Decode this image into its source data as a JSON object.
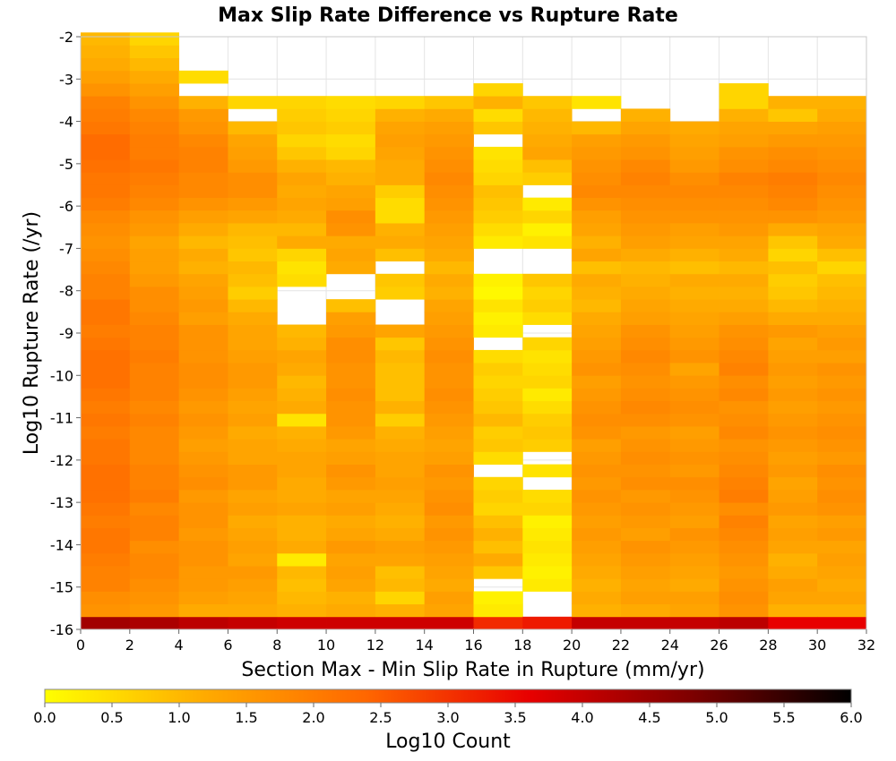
{
  "chart_data": {
    "type": "heatmap",
    "title": "Max Slip Rate Difference vs Rupture Rate",
    "xlabel": "Section Max - Min Slip Rate in Rupture (mm/yr)",
    "ylabel": "Log10 Rupture Rate (/yr)",
    "xlim": [
      0,
      32
    ],
    "ylim": [
      -16,
      -2
    ],
    "x_ticks": [
      0,
      2,
      4,
      6,
      8,
      10,
      12,
      14,
      16,
      18,
      20,
      22,
      24,
      26,
      28,
      30,
      32
    ],
    "y_ticks": [
      -2,
      -3,
      -4,
      -5,
      -6,
      -7,
      -8,
      -9,
      -10,
      -11,
      -12,
      -13,
      -14,
      -15,
      -16
    ],
    "x_bin_width": 2,
    "y_bin_start": -16,
    "y_bin_height": 0.3,
    "grid": true,
    "colorbar": {
      "label": "Log10 Count",
      "min": 0.0,
      "max": 6.0,
      "ticks": [
        "0.0",
        "0.5",
        "1.0",
        "1.5",
        "2.0",
        "2.5",
        "3.0",
        "3.5",
        "4.0",
        "4.5",
        "5.0",
        "5.5",
        "6.0"
      ],
      "colors": [
        "#ffff00",
        "#ffaa00",
        "#ff6600",
        "#e80000",
        "#7f0000",
        "#000000"
      ]
    },
    "columns": [
      {
        "x_range": [
          0,
          2
        ],
        "values": [
          4.4,
          1.6,
          1.7,
          1.9,
          1.9,
          2.0,
          2.1,
          2.1,
          2.0,
          2.1,
          2.2,
          2.2,
          2.2,
          2.1,
          2.1,
          2.0,
          2.1,
          2.0,
          2.1,
          2.2,
          2.2,
          2.2,
          2.1,
          2.0,
          2.1,
          2.1,
          1.9,
          1.9,
          1.8,
          1.7,
          1.6,
          1.7,
          1.8,
          2.0,
          2.1,
          2.1,
          2.2,
          2.3,
          2.3,
          2.1,
          2.0,
          1.9,
          1.6,
          1.4,
          1.2,
          1.1,
          1.0
        ]
      },
      {
        "x_range": [
          2,
          4
        ],
        "values": [
          4.3,
          1.5,
          1.6,
          1.7,
          1.8,
          1.8,
          1.7,
          1.9,
          1.9,
          1.8,
          2.0,
          1.9,
          1.9,
          1.8,
          1.8,
          1.8,
          1.9,
          1.8,
          1.9,
          1.9,
          1.9,
          2.0,
          1.9,
          1.9,
          1.8,
          1.7,
          1.7,
          1.5,
          1.4,
          1.4,
          1.3,
          1.5,
          1.6,
          1.8,
          1.9,
          2.0,
          2.1,
          2.0,
          2.0,
          1.9,
          1.8,
          1.6,
          1.4,
          1.2,
          1.0,
          0.8,
          0.6
        ]
      },
      {
        "x_range": [
          4,
          6
        ],
        "values": [
          4.1,
          1.2,
          1.4,
          1.5,
          1.5,
          1.6,
          1.6,
          1.5,
          1.6,
          1.6,
          1.5,
          1.7,
          1.6,
          1.5,
          1.4,
          1.5,
          1.6,
          1.5,
          1.6,
          1.7,
          1.7,
          1.6,
          1.6,
          1.6,
          1.4,
          1.5,
          1.4,
          1.3,
          1.1,
          1.2,
          1.0,
          1.2,
          1.4,
          1.6,
          1.8,
          1.8,
          1.9,
          1.9,
          1.8,
          1.6,
          1.5,
          1.1,
          null,
          0.5,
          null,
          null,
          null
        ]
      },
      {
        "x_range": [
          6,
          8
        ],
        "values": [
          4.0,
          1.2,
          1.3,
          1.4,
          1.5,
          1.3,
          1.4,
          1.3,
          1.2,
          1.4,
          1.3,
          1.5,
          1.5,
          1.3,
          1.3,
          1.2,
          1.4,
          1.3,
          1.4,
          1.5,
          1.5,
          1.4,
          1.3,
          1.3,
          1.2,
          1.0,
          0.7,
          0.9,
          1.0,
          0.8,
          0.9,
          1.0,
          1.3,
          1.5,
          1.7,
          1.7,
          1.5,
          1.4,
          1.3,
          1.0,
          null,
          0.6,
          null,
          null,
          null,
          null,
          null
        ]
      },
      {
        "x_range": [
          8,
          10
        ],
        "values": [
          3.9,
          1.1,
          1.0,
          0.9,
          1.0,
          0.3,
          1.2,
          1.1,
          1.1,
          1.3,
          1.2,
          1.2,
          1.3,
          1.3,
          1.2,
          1.1,
          0.4,
          1.2,
          1.1,
          1.0,
          1.2,
          1.3,
          1.1,
          1.0,
          null,
          null,
          null,
          0.5,
          0.4,
          0.6,
          1.2,
          1.0,
          1.2,
          1.3,
          1.2,
          1.3,
          1.1,
          0.8,
          0.6,
          0.8,
          0.7,
          0.6,
          null,
          null,
          null,
          null,
          null
        ]
      },
      {
        "x_range": [
          10,
          12
        ],
        "values": [
          3.9,
          1.2,
          1.1,
          1.3,
          1.4,
          1.3,
          1.5,
          1.3,
          1.2,
          1.4,
          1.3,
          1.5,
          1.6,
          1.4,
          1.3,
          1.5,
          1.6,
          1.6,
          1.7,
          1.6,
          1.6,
          1.7,
          1.7,
          1.5,
          1.4,
          0.9,
          null,
          null,
          1.2,
          1.3,
          1.2,
          1.6,
          1.7,
          1.4,
          1.3,
          1.1,
          1.0,
          0.6,
          0.5,
          0.7,
          0.6,
          0.5,
          null,
          null,
          null,
          null,
          null
        ]
      },
      {
        "x_range": [
          12,
          14
        ],
        "values": [
          3.9,
          1.1,
          0.6,
          1.0,
          0.9,
          1.3,
          1.4,
          1.2,
          1.1,
          1.2,
          1.3,
          1.4,
          1.3,
          1.3,
          1.2,
          1.1,
          0.7,
          1.1,
          0.9,
          0.9,
          0.9,
          1.0,
          0.8,
          1.3,
          null,
          null,
          0.7,
          0.8,
          null,
          0.9,
          1.2,
          1.1,
          0.5,
          0.5,
          0.7,
          1.2,
          1.2,
          1.3,
          1.4,
          1.3,
          1.1,
          0.6,
          null,
          null,
          null,
          null,
          null
        ]
      },
      {
        "x_range": [
          14,
          16
        ],
        "values": [
          3.9,
          1.3,
          1.4,
          1.2,
          1.3,
          1.4,
          1.5,
          1.6,
          1.5,
          1.7,
          1.6,
          1.5,
          1.6,
          1.4,
          1.3,
          1.4,
          1.5,
          1.6,
          1.7,
          1.6,
          1.6,
          1.7,
          1.6,
          1.5,
          1.4,
          1.3,
          1.1,
          1.2,
          1.0,
          1.2,
          1.3,
          1.4,
          1.5,
          1.6,
          1.7,
          1.8,
          1.7,
          1.6,
          1.5,
          1.4,
          1.2,
          0.8,
          null,
          null,
          null,
          null,
          null
        ]
      },
      {
        "x_range": [
          16,
          18
        ],
        "values": [
          3.1,
          0.3,
          0.2,
          null,
          0.8,
          1.2,
          0.9,
          1.1,
          0.9,
          0.6,
          0.7,
          0.6,
          null,
          0.5,
          0.8,
          0.7,
          1.0,
          0.8,
          0.7,
          0.6,
          0.7,
          0.5,
          null,
          0.3,
          0.2,
          0.4,
          0.1,
          0.2,
          null,
          null,
          0.3,
          0.5,
          0.7,
          0.8,
          0.9,
          0.6,
          0.5,
          0.4,
          null,
          0.8,
          0.5,
          1.1,
          0.6,
          null,
          null,
          null,
          null
        ]
      },
      {
        "x_range": [
          18,
          20
        ],
        "values": [
          3.3,
          null,
          null,
          0.3,
          0.2,
          0.3,
          0.4,
          0.3,
          0.2,
          0.6,
          0.5,
          null,
          0.4,
          null,
          0.7,
          0.8,
          0.7,
          0.5,
          0.3,
          0.6,
          0.5,
          0.4,
          0.6,
          null,
          0.5,
          0.7,
          0.6,
          0.8,
          null,
          null,
          0.4,
          0.2,
          0.6,
          0.3,
          null,
          0.7,
          0.9,
          1.3,
          1.2,
          1.1,
          1.0,
          0.8,
          null,
          null,
          null,
          null,
          null
        ]
      },
      {
        "x_range": [
          20,
          22
        ],
        "values": [
          4.0,
          1.1,
          1.2,
          1.1,
          1.2,
          1.3,
          1.4,
          1.5,
          1.4,
          1.5,
          1.6,
          1.5,
          1.6,
          1.5,
          1.4,
          1.6,
          1.7,
          1.6,
          1.5,
          1.4,
          1.6,
          1.5,
          1.4,
          1.3,
          1.2,
          1.0,
          1.1,
          1.2,
          0.9,
          1.3,
          1.1,
          1.3,
          1.4,
          1.6,
          1.8,
          1.7,
          1.6,
          1.5,
          1.4,
          1.0,
          null,
          0.4,
          null,
          null,
          null,
          null,
          null
        ]
      },
      {
        "x_range": [
          22,
          24
        ],
        "values": [
          4.0,
          1.2,
          1.4,
          1.3,
          1.4,
          1.5,
          1.6,
          1.4,
          1.5,
          1.6,
          1.5,
          1.7,
          1.6,
          1.7,
          1.6,
          1.5,
          1.7,
          1.8,
          1.7,
          1.6,
          1.7,
          1.8,
          1.7,
          1.6,
          1.4,
          1.3,
          1.2,
          1.1,
          1.0,
          1.2,
          1.4,
          1.5,
          1.6,
          1.7,
          1.8,
          1.9,
          1.8,
          1.6,
          1.5,
          1.3,
          1.1,
          null,
          null,
          null,
          null,
          null,
          null
        ]
      },
      {
        "x_range": [
          24,
          26
        ],
        "values": [
          4.0,
          1.3,
          1.4,
          1.2,
          1.3,
          1.4,
          1.5,
          1.6,
          1.4,
          1.5,
          1.6,
          1.7,
          1.5,
          1.6,
          1.5,
          1.4,
          1.6,
          1.7,
          1.6,
          1.5,
          1.3,
          1.6,
          1.5,
          1.4,
          1.3,
          1.2,
          1.1,
          1.2,
          0.9,
          1.1,
          1.3,
          1.4,
          1.6,
          1.7,
          1.8,
          1.7,
          1.5,
          1.4,
          1.3,
          1.2,
          null,
          null,
          null,
          null,
          null,
          null,
          null
        ]
      },
      {
        "x_range": [
          26,
          28
        ],
        "values": [
          4.1,
          1.6,
          1.7,
          1.6,
          1.5,
          1.6,
          1.7,
          1.8,
          1.9,
          1.7,
          2.0,
          1.9,
          1.8,
          1.7,
          1.6,
          1.8,
          1.7,
          1.6,
          1.8,
          1.7,
          1.9,
          1.8,
          1.7,
          1.6,
          1.4,
          1.2,
          1.1,
          1.2,
          1.0,
          1.2,
          1.3,
          1.5,
          1.6,
          1.7,
          1.8,
          1.9,
          1.7,
          1.6,
          1.4,
          1.3,
          1.1,
          0.6,
          0.6,
          null,
          null,
          null,
          null
        ]
      },
      {
        "x_range": [
          28,
          30
        ],
        "values": [
          3.6,
          1.1,
          1.3,
          1.4,
          1.2,
          1.1,
          1.3,
          1.4,
          1.3,
          1.5,
          1.4,
          1.3,
          1.5,
          1.4,
          1.5,
          1.6,
          1.5,
          1.4,
          1.5,
          1.4,
          1.5,
          1.4,
          1.3,
          1.5,
          1.2,
          1.0,
          0.8,
          0.7,
          0.9,
          0.6,
          0.8,
          1.2,
          1.6,
          1.8,
          1.9,
          2.0,
          1.8,
          1.7,
          1.5,
          1.3,
          0.8,
          1.1,
          null,
          null,
          null,
          null,
          null
        ]
      },
      {
        "x_range": [
          30,
          32
        ],
        "values": [
          3.6,
          1.1,
          1.3,
          1.2,
          1.3,
          1.4,
          1.3,
          1.5,
          1.4,
          1.6,
          1.7,
          1.6,
          1.7,
          1.5,
          1.6,
          1.7,
          1.6,
          1.5,
          1.6,
          1.5,
          1.6,
          1.4,
          1.5,
          1.4,
          1.2,
          1.1,
          1.0,
          0.9,
          0.6,
          0.9,
          1.2,
          1.3,
          1.5,
          1.6,
          1.7,
          1.8,
          1.7,
          1.6,
          1.5,
          1.4,
          1.2,
          1.1,
          null,
          null,
          null,
          null,
          null
        ]
      }
    ]
  }
}
